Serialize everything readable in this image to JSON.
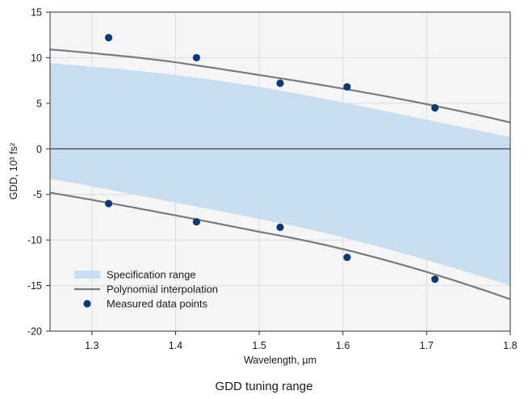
{
  "caption": "GDD tuning range",
  "chart_data": {
    "type": "scatter",
    "title": "",
    "xlabel": "Wavelength, µm",
    "ylabel": "GDD, 10³ fs²",
    "xlim": [
      1.25,
      1.8
    ],
    "ylim": [
      -20,
      15
    ],
    "xticks": [
      1.3,
      1.4,
      1.5,
      1.6,
      1.7,
      1.8
    ],
    "xtick_labels": [
      "1.3",
      "1.4",
      "1.5",
      "1.6",
      "1.7",
      "1.8"
    ],
    "yticks": [
      -20,
      -15,
      -10,
      -5,
      0,
      5,
      10,
      15
    ],
    "ytick_labels": [
      "-20",
      "-15",
      "-10",
      "-5",
      "0",
      "5",
      "10",
      "15"
    ],
    "grid": true,
    "zero_line": true,
    "legend_position": "bottom-left",
    "band": {
      "name": "Specification range",
      "color": "#c9def0",
      "x": [
        1.25,
        1.3,
        1.4,
        1.5,
        1.6,
        1.7,
        1.8
      ],
      "upper": [
        9.4,
        9.0,
        8.1,
        6.8,
        5.1,
        3.2,
        1.3
      ],
      "lower": [
        -3.3,
        -4.1,
        -5.9,
        -7.7,
        -9.7,
        -12.2,
        -15.0
      ]
    },
    "curves": [
      {
        "name": "Polynomial interpolation",
        "color": "#7a7a7a",
        "x": [
          1.25,
          1.3,
          1.4,
          1.5,
          1.6,
          1.7,
          1.8
        ],
        "y": [
          10.9,
          10.5,
          9.5,
          8.1,
          6.6,
          4.9,
          2.9
        ]
      },
      {
        "name": "Polynomial interpolation",
        "color": "#7a7a7a",
        "x": [
          1.25,
          1.3,
          1.4,
          1.5,
          1.6,
          1.7,
          1.8
        ],
        "y": [
          -4.8,
          -5.6,
          -7.3,
          -9.1,
          -11.0,
          -13.5,
          -16.5
        ]
      }
    ],
    "points": {
      "name": "Measured data points",
      "color": "#0d3a75",
      "x": [
        1.32,
        1.425,
        1.525,
        1.605,
        1.71,
        1.32,
        1.425,
        1.525,
        1.605,
        1.71
      ],
      "y": [
        12.2,
        10.0,
        7.2,
        6.8,
        4.5,
        -6.0,
        -8.0,
        -8.6,
        -11.9,
        -14.3
      ]
    },
    "legend": [
      {
        "label": "Specification range",
        "kind": "band",
        "color": "#c9def0"
      },
      {
        "label": "Polynomial interpolation",
        "kind": "line",
        "color": "#7a7a7a"
      },
      {
        "label": "Measured data points",
        "kind": "marker",
        "color": "#0d3a75"
      }
    ]
  }
}
